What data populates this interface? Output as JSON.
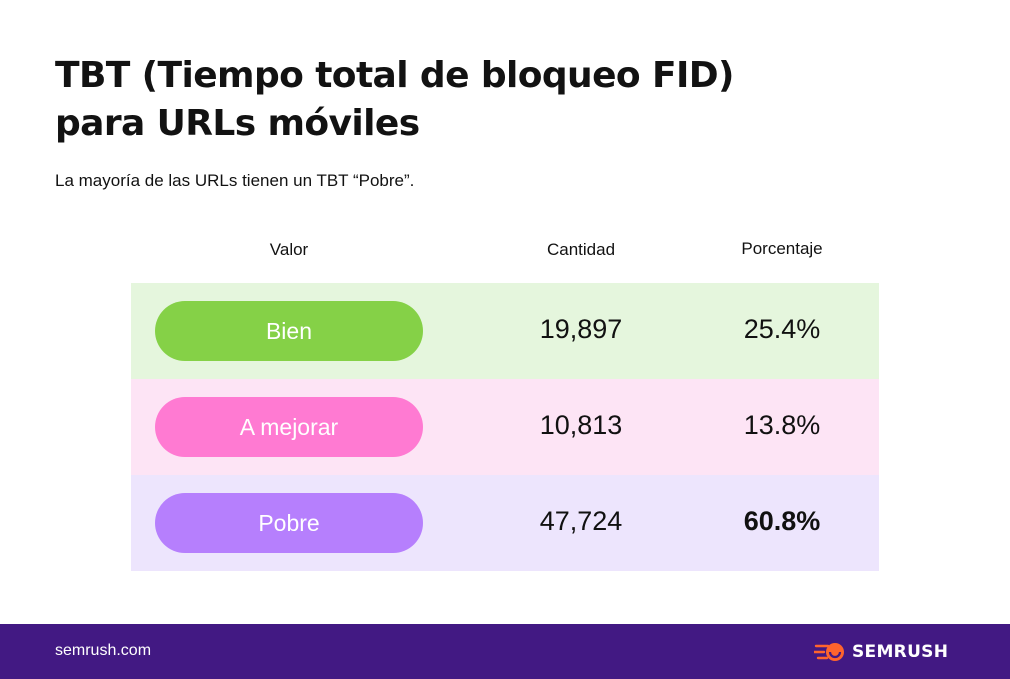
{
  "header": {
    "title_line1": "TBT (Tiempo total de bloqueo FID)",
    "title_line2": "para URLs móviles",
    "subtitle": "La mayoría de las URLs tienen un TBT “Pobre”."
  },
  "chart_data": {
    "type": "table",
    "columns": [
      "Valor",
      "Cantidad",
      "Porcentaje"
    ],
    "rows": [
      {
        "valor": "Bien",
        "cantidad": "19,897",
        "porcentaje": "25.4%",
        "pill_color": "#85d147",
        "row_color": "#e5f6dd"
      },
      {
        "valor": "A mejorar",
        "cantidad": "10,813",
        "porcentaje": "13.8%",
        "pill_color": "#ff7ad2",
        "row_color": "#fde4f5"
      },
      {
        "valor": "Pobre",
        "cantidad": "47,724",
        "porcentaje": "60.8%",
        "pill_color": "#b67ffd",
        "row_color": "#ede5fd"
      }
    ]
  },
  "footer": {
    "url": "semrush.com",
    "brand": "SEMRUSH",
    "brand_logo_icon": "semrush-fireball-icon",
    "background": "#421983",
    "accent": "#ff642d"
  }
}
